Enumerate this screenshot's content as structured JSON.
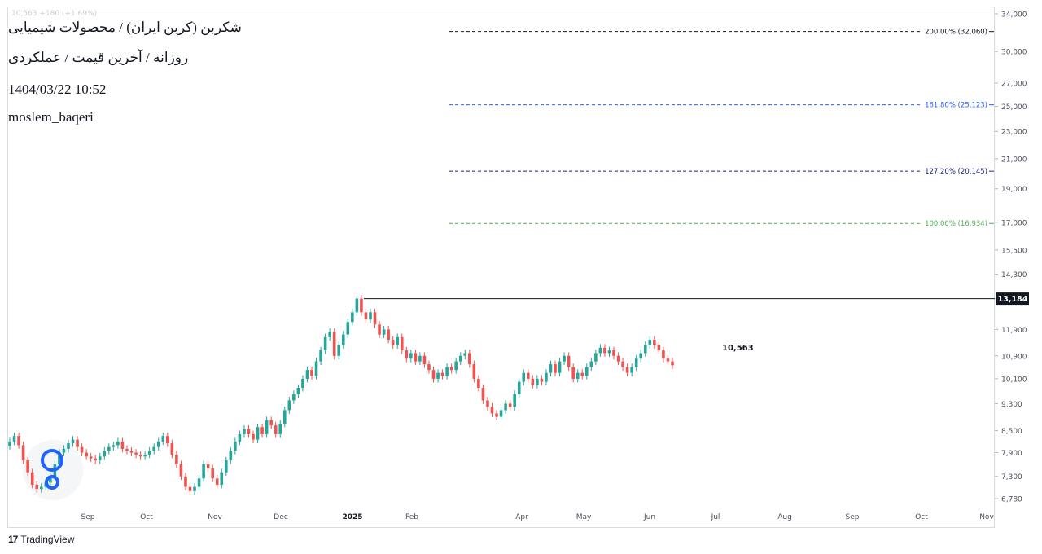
{
  "header": {
    "title": "شکربن (کربن ایران) / محصولات شیمیایی",
    "subtitle": "روزانه / آخرین قیمت / عملکردی",
    "timestamp": "1404/03/22 10:52",
    "author": "moslem_baqeri",
    "faded_legend": "10,563 +180 (+1.69%)"
  },
  "brand": {
    "name": "TradingView",
    "logo_glyph": "17"
  },
  "colors": {
    "up": "#26a69a",
    "down": "#ef5350",
    "fib_200": "#131722",
    "fib_161": "#2962ff",
    "fib_127": "#1a237e",
    "fib_100": "#4caf50",
    "axis_text": "#4a4f5a",
    "logo_blue": "#1e63ff"
  },
  "chart_data": {
    "type": "candlestick",
    "y_axis": {
      "position": "right",
      "scale": "log",
      "ticks": [
        34000,
        30000,
        27000,
        25000,
        23000,
        21000,
        19000,
        17000,
        15500,
        14300,
        11900,
        10900,
        10100,
        9300,
        8500,
        7900,
        7300,
        6780
      ],
      "tick_labels": [
        "34,000",
        "30,000",
        "27,000",
        "25,000",
        "23,000",
        "21,000",
        "19,000",
        "17,000",
        "15,500",
        "14,300",
        "11,900",
        "10,900",
        "10,100",
        "9,300",
        "8,500",
        "7,900",
        "7,300",
        "6,780"
      ]
    },
    "x_axis": {
      "labels": [
        "Sep",
        "Oct",
        "Nov",
        "Dec",
        "2025",
        "Feb",
        "Apr",
        "May",
        "Jun",
        "Jul",
        "Aug",
        "Sep",
        "Oct",
        "Nov"
      ],
      "bold": [
        "2025"
      ]
    },
    "price_marker": {
      "value": 13184,
      "label": "13,184"
    },
    "last_price_annotation": {
      "value": 10563,
      "label": "10,563"
    },
    "fib_levels": [
      {
        "label": "200.00% (32,060)",
        "value": 32060,
        "color_key": "fib_200"
      },
      {
        "label": "161.80% (25,123)",
        "value": 25123,
        "color_key": "fib_161"
      },
      {
        "label": "127.20% (20,145)",
        "value": 20145,
        "color_key": "fib_127"
      },
      {
        "label": "100.00% (16,934)",
        "value": 16934,
        "color_key": "fib_100"
      }
    ],
    "candles_close": [
      8200,
      8350,
      8100,
      7700,
      7400,
      7100,
      7000,
      7050,
      7150,
      7300,
      7600,
      7900,
      8000,
      8150,
      8250,
      8050,
      7900,
      7800,
      7750,
      7700,
      7800,
      7950,
      8050,
      8100,
      8200,
      8000,
      7950,
      7900,
      7850,
      7800,
      7850,
      7950,
      8050,
      8200,
      8350,
      8150,
      7850,
      7600,
      7300,
      7050,
      6950,
      7050,
      7250,
      7600,
      7500,
      7250,
      7100,
      7400,
      7700,
      7950,
      8200,
      8400,
      8550,
      8400,
      8250,
      8600,
      8400,
      8800,
      8650,
      8400,
      8700,
      9100,
      9400,
      9600,
      9800,
      10100,
      10400,
      10200,
      10700,
      11100,
      11600,
      11800,
      10900,
      11300,
      11700,
      12200,
      12600,
      13184,
      12600,
      12300,
      12600,
      12100,
      11700,
      11900,
      11500,
      11300,
      11600,
      11100,
      10800,
      11000,
      10700,
      10900,
      10600,
      10400,
      10100,
      10300,
      10200,
      10500,
      10400,
      10700,
      10900,
      11000,
      10600,
      10100,
      9800,
      9400,
      9200,
      9000,
      8900,
      9100,
      9300,
      9200,
      9600,
      10000,
      10300,
      10100,
      9900,
      10100,
      10000,
      10300,
      10600,
      10300,
      10700,
      10900,
      10500,
      10100,
      10300,
      10200,
      10500,
      10700,
      11000,
      11200,
      11000,
      11100,
      10900,
      10700,
      10500,
      10300,
      10500,
      10800,
      11000,
      11300,
      11500,
      11300,
      11100,
      10800,
      10700,
      10563
    ]
  }
}
